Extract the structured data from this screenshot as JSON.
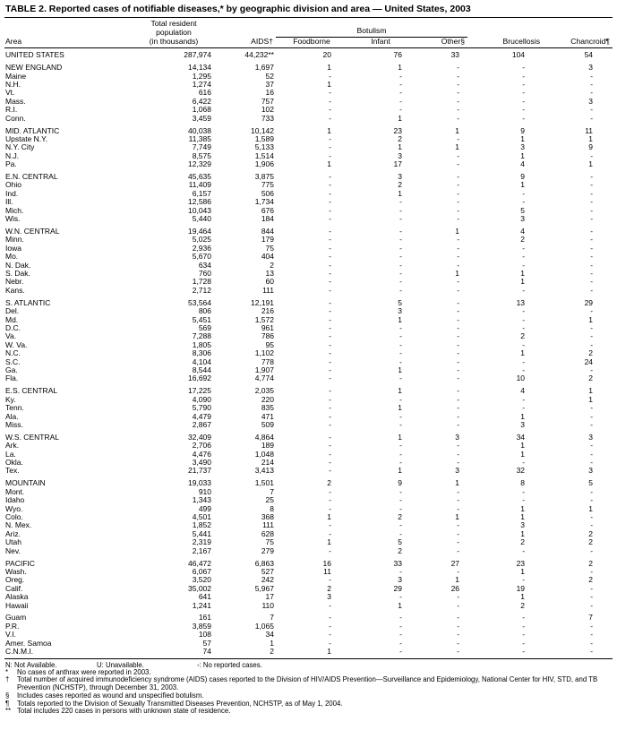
{
  "title": "TABLE 2. Reported cases of notifiable diseases,* by geographic division and area — United States, 2003",
  "header": {
    "area": "Area",
    "population_top": "Total resident",
    "population_mid": "population",
    "population_unit": "(in thousands)",
    "aids": "AIDS†",
    "botulism_group": "Botulism",
    "foodborne": "Foodborne",
    "infant": "Infant",
    "other": "Other§",
    "brucellosis": "Brucellosis",
    "chancroid": "Chancroid¶"
  },
  "groups": [
    [
      [
        "UNITED STATES",
        "287,974",
        "44,232**",
        "20",
        "76",
        "33",
        "104",
        "54"
      ]
    ],
    [
      [
        "NEW ENGLAND",
        "14,134",
        "1,697",
        "1",
        "1",
        "-",
        "-",
        "3"
      ],
      [
        "Maine",
        "1,295",
        "52",
        "-",
        "-",
        "-",
        "-",
        "-"
      ],
      [
        "N.H.",
        "1,274",
        "37",
        "1",
        "-",
        "-",
        "-",
        "-"
      ],
      [
        "Vt.",
        "616",
        "16",
        "-",
        "-",
        "-",
        "-",
        "-"
      ],
      [
        "Mass.",
        "6,422",
        "757",
        "-",
        "-",
        "-",
        "-",
        "3"
      ],
      [
        "R.I.",
        "1,068",
        "102",
        "-",
        "-",
        "-",
        "-",
        "-"
      ],
      [
        "Conn.",
        "3,459",
        "733",
        "-",
        "1",
        "-",
        "-",
        "-"
      ]
    ],
    [
      [
        "MID. ATLANTIC",
        "40,038",
        "10,142",
        "1",
        "23",
        "1",
        "9",
        "11"
      ],
      [
        "Upstate N.Y.",
        "11,385",
        "1,589",
        "-",
        "2",
        "-",
        "1",
        "1"
      ],
      [
        "N.Y. City",
        "7,749",
        "5,133",
        "-",
        "1",
        "1",
        "3",
        "9"
      ],
      [
        "N.J.",
        "8,575",
        "1,514",
        "-",
        "3",
        "-",
        "1",
        "-"
      ],
      [
        "Pa.",
        "12,329",
        "1,906",
        "1",
        "17",
        "-",
        "4",
        "1"
      ]
    ],
    [
      [
        "E.N. CENTRAL",
        "45,635",
        "3,875",
        "-",
        "3",
        "-",
        "9",
        "-"
      ],
      [
        "Ohio",
        "11,409",
        "775",
        "-",
        "2",
        "-",
        "1",
        "-"
      ],
      [
        "Ind.",
        "6,157",
        "506",
        "-",
        "1",
        "-",
        "-",
        "-"
      ],
      [
        "Ill.",
        "12,586",
        "1,734",
        "-",
        "-",
        "-",
        "-",
        "-"
      ],
      [
        "Mich.",
        "10,043",
        "676",
        "-",
        "-",
        "-",
        "5",
        "-"
      ],
      [
        "Wis.",
        "5,440",
        "184",
        "-",
        "-",
        "-",
        "3",
        "-"
      ]
    ],
    [
      [
        "W.N. CENTRAL",
        "19,464",
        "844",
        "-",
        "-",
        "1",
        "4",
        "-"
      ],
      [
        "Minn.",
        "5,025",
        "179",
        "-",
        "-",
        "-",
        "2",
        "-"
      ],
      [
        "Iowa",
        "2,936",
        "75",
        "-",
        "-",
        "-",
        "-",
        "-"
      ],
      [
        "Mo.",
        "5,670",
        "404",
        "-",
        "-",
        "-",
        "-",
        "-"
      ],
      [
        "N. Dak.",
        "634",
        "2",
        "-",
        "-",
        "-",
        "-",
        "-"
      ],
      [
        "S. Dak.",
        "760",
        "13",
        "-",
        "-",
        "1",
        "1",
        "-"
      ],
      [
        "Nebr.",
        "1,728",
        "60",
        "-",
        "-",
        "-",
        "1",
        "-"
      ],
      [
        "Kans.",
        "2,712",
        "111",
        "-",
        "-",
        "-",
        "-",
        "-"
      ]
    ],
    [
      [
        "S. ATLANTIC",
        "53,564",
        "12,191",
        "-",
        "5",
        "-",
        "13",
        "29"
      ],
      [
        "Del.",
        "806",
        "216",
        "-",
        "3",
        "-",
        "-",
        "-"
      ],
      [
        "Md.",
        "5,451",
        "1,572",
        "-",
        "1",
        "-",
        "-",
        "1"
      ],
      [
        "D.C.",
        "569",
        "961",
        "-",
        "-",
        "-",
        "-",
        "-"
      ],
      [
        "Va.",
        "7,288",
        "786",
        "-",
        "-",
        "-",
        "2",
        "-"
      ],
      [
        "W. Va.",
        "1,805",
        "95",
        "-",
        "-",
        "-",
        "-",
        "-"
      ],
      [
        "N.C.",
        "8,306",
        "1,102",
        "-",
        "-",
        "-",
        "1",
        "2"
      ],
      [
        "S.C.",
        "4,104",
        "778",
        "-",
        "-",
        "-",
        "-",
        "24"
      ],
      [
        "Ga.",
        "8,544",
        "1,907",
        "-",
        "1",
        "-",
        "-",
        "-"
      ],
      [
        "Fla.",
        "16,692",
        "4,774",
        "-",
        "-",
        "-",
        "10",
        "2"
      ]
    ],
    [
      [
        "E.S. CENTRAL",
        "17,225",
        "2,035",
        "-",
        "1",
        "-",
        "4",
        "1"
      ],
      [
        "Ky.",
        "4,090",
        "220",
        "-",
        "-",
        "-",
        "-",
        "1"
      ],
      [
        "Tenn.",
        "5,790",
        "835",
        "-",
        "1",
        "-",
        "-",
        "-"
      ],
      [
        "Ala.",
        "4,479",
        "471",
        "-",
        "-",
        "-",
        "1",
        "-"
      ],
      [
        "Miss.",
        "2,867",
        "509",
        "-",
        "-",
        "-",
        "3",
        "-"
      ]
    ],
    [
      [
        "W.S. CENTRAL",
        "32,409",
        "4,864",
        "-",
        "1",
        "3",
        "34",
        "3"
      ],
      [
        "Ark.",
        "2,706",
        "189",
        "-",
        "-",
        "-",
        "1",
        "-"
      ],
      [
        "La.",
        "4,476",
        "1,048",
        "-",
        "-",
        "-",
        "1",
        "-"
      ],
      [
        "Okla.",
        "3,490",
        "214",
        "-",
        "-",
        "-",
        "-",
        "-"
      ],
      [
        "Tex.",
        "21,737",
        "3,413",
        "-",
        "1",
        "3",
        "32",
        "3"
      ]
    ],
    [
      [
        "MOUNTAIN",
        "19,033",
        "1,501",
        "2",
        "9",
        "1",
        "8",
        "5"
      ],
      [
        "Mont.",
        "910",
        "7",
        "-",
        "-",
        "-",
        "-",
        "-"
      ],
      [
        "Idaho",
        "1,343",
        "25",
        "-",
        "-",
        "-",
        "-",
        "-"
      ],
      [
        "Wyo.",
        "499",
        "8",
        "-",
        "-",
        "-",
        "1",
        "1"
      ],
      [
        "Colo.",
        "4,501",
        "368",
        "1",
        "2",
        "1",
        "1",
        "-"
      ],
      [
        "N. Mex.",
        "1,852",
        "111",
        "-",
        "-",
        "-",
        "3",
        "-"
      ],
      [
        "Ariz.",
        "5,441",
        "628",
        "-",
        "-",
        "-",
        "1",
        "2"
      ],
      [
        "Utah",
        "2,319",
        "75",
        "1",
        "5",
        "-",
        "2",
        "2"
      ],
      [
        "Nev.",
        "2,167",
        "279",
        "-",
        "2",
        "-",
        "-",
        "-"
      ]
    ],
    [
      [
        "PACIFIC",
        "46,472",
        "6,863",
        "16",
        "33",
        "27",
        "23",
        "2"
      ],
      [
        "Wash.",
        "6,067",
        "527",
        "11",
        "-",
        "-",
        "1",
        "-"
      ],
      [
        "Oreg.",
        "3,520",
        "242",
        "-",
        "3",
        "1",
        "-",
        "2"
      ],
      [
        "Calif.",
        "35,002",
        "5,967",
        "2",
        "29",
        "26",
        "19",
        "-"
      ],
      [
        "Alaska",
        "641",
        "17",
        "3",
        "-",
        "-",
        "1",
        "-"
      ],
      [
        "Hawaii",
        "1,241",
        "110",
        "-",
        "1",
        "-",
        "2",
        "-"
      ]
    ],
    [
      [
        "Guam",
        "161",
        "7",
        "-",
        "-",
        "-",
        "-",
        "7"
      ],
      [
        "P.R.",
        "3,859",
        "1,065",
        "-",
        "-",
        "-",
        "-",
        "-"
      ],
      [
        "V.I.",
        "108",
        "34",
        "-",
        "-",
        "-",
        "-",
        "-"
      ],
      [
        "Amer. Samoa",
        "57",
        "1",
        "-",
        "-",
        "-",
        "-",
        "-"
      ],
      [
        "C.N.M.I.",
        "74",
        "2",
        "1",
        "-",
        "-",
        "-",
        "-"
      ]
    ]
  ],
  "legend": [
    "N: Not Available.",
    "U: Unavailable.",
    "-: No reported cases."
  ],
  "footnotes": [
    {
      "sym": "*",
      "text": "No cases of anthrax were reported in 2003."
    },
    {
      "sym": "†",
      "text": "Total number of acquired immunodeficiency syndrome (AIDS) cases reported to the Division of HIV/AIDS Prevention—Surveillance and Epidemiology, National Center for HIV, STD, and TB Prevention (NCHSTP), through December 31, 2003."
    },
    {
      "sym": "§",
      "text": "Includes cases reported as wound and unspecified botulism."
    },
    {
      "sym": "¶",
      "text": "Totals reported to the Division of Sexually Transmitted Diseases Prevention, NCHSTP, as of May 1, 2004."
    },
    {
      "sym": "**",
      "text": "Total includes 220 cases in persons with unknown state of residence."
    }
  ]
}
